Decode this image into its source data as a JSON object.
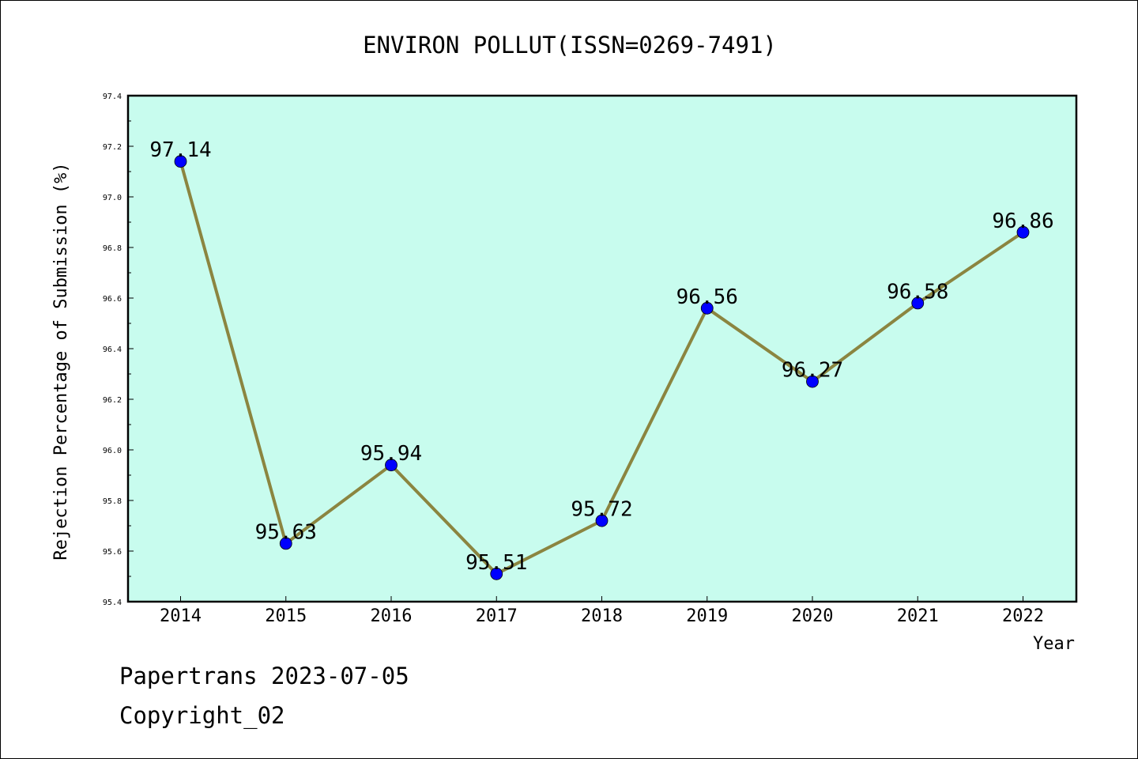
{
  "chart_data": {
    "type": "line",
    "title": "ENVIRON POLLUT(ISSN=0269-7491)",
    "xlabel": "Year",
    "ylabel": "Rejection Percentage of Submission (%)",
    "x": [
      "2014",
      "2015",
      "2016",
      "2017",
      "2018",
      "2019",
      "2020",
      "2021",
      "2022"
    ],
    "values": [
      97.14,
      95.63,
      95.94,
      95.51,
      95.72,
      96.56,
      96.27,
      96.58,
      96.86
    ],
    "data_labels": [
      "97.14",
      "95.63",
      "95.94",
      "95.51",
      "95.72",
      "96.56",
      "96.27",
      "96.58",
      "96.86"
    ],
    "ylim": [
      95.4,
      97.4
    ],
    "yticks": [
      "95.4",
      "95.6",
      "95.8",
      "96.0",
      "96.2",
      "96.4",
      "96.6",
      "96.8",
      "97.0",
      "97.2",
      "97.4"
    ],
    "grid": false,
    "colors": {
      "plot_background": "#c8fcee",
      "line": "#8b8540",
      "marker": "#0000ff"
    }
  },
  "footer": {
    "line1": "Papertrans 2023-07-05",
    "line2": "Copyright_02"
  }
}
